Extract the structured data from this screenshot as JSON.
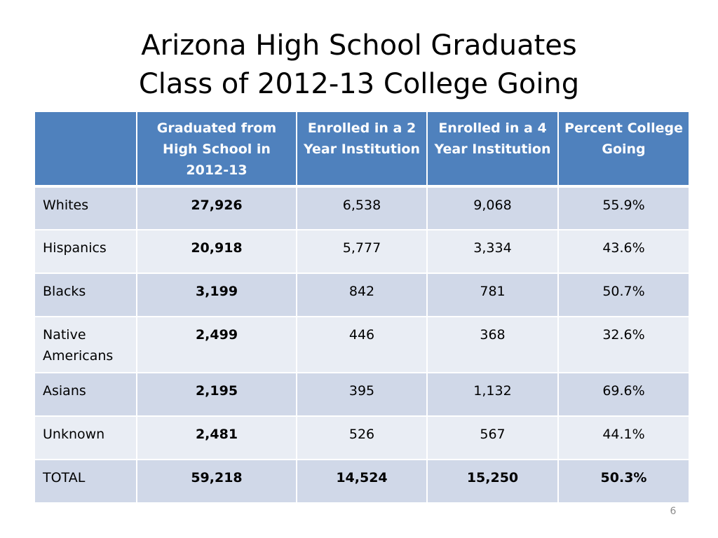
{
  "title": {
    "line1": "Arizona High School Graduates",
    "line2": "Class of 2012-13 College Going"
  },
  "table": {
    "headers": [
      "",
      "Graduated from High School in 2012-13",
      "Enrolled in a 2 Year Institution",
      "Enrolled in a 4 Year Institution",
      "Percent College Going"
    ],
    "rows": [
      [
        "Whites",
        "27,926",
        "6,538",
        "9,068",
        "55.9%"
      ],
      [
        "Hispanics",
        "20,918",
        "5,777",
        "3,334",
        "43.6%"
      ],
      [
        "Blacks",
        "3,199",
        "842",
        "781",
        "50.7%"
      ],
      [
        "Native Americans",
        "2,499",
        "446",
        "368",
        "32.6%"
      ],
      [
        "Asians",
        "2,195",
        "395",
        "1,132",
        "69.6%"
      ],
      [
        "Unknown",
        "2,481",
        "526",
        "567",
        "44.1%"
      ],
      [
        "TOTAL",
        "59,218",
        "14,524",
        "15,250",
        "50.3%"
      ]
    ]
  },
  "slide_number": "6",
  "colors": {
    "header_bg": "#4f81bd",
    "row_dark": "#d0d8e8",
    "row_light": "#e9edf4"
  }
}
